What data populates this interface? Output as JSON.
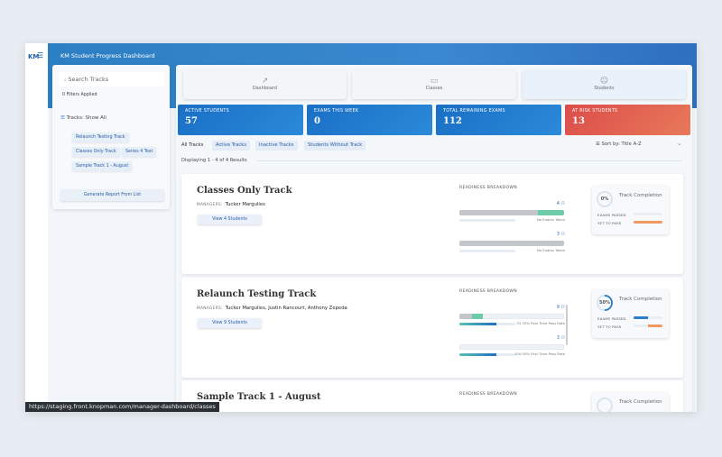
{
  "app": {
    "logo": "KM",
    "title": "KM Student Progress Dashboard"
  },
  "sidebar": {
    "search_placeholder": "Search Tracks",
    "filters_applied": "0 Filters Applied",
    "tracks_filter": "Tracks: Show All",
    "chips": [
      "Relaunch Testing Track",
      "Classes Only Track",
      "Series 4 Test",
      "Sample Track 1 - August"
    ],
    "generate_button": "Generate Report From List"
  },
  "nav_tabs": [
    {
      "label": "Dashboard",
      "icon": "chart-line-icon"
    },
    {
      "label": "Classes",
      "icon": "classroom-icon"
    },
    {
      "label": "Students",
      "icon": "students-icon"
    }
  ],
  "stats": [
    {
      "label": "ACTIVE STUDENTS",
      "value": "57",
      "color": "#1a6fc5"
    },
    {
      "label": "EXAMS THIS WEEK",
      "value": "0",
      "color": "#1a6fc5"
    },
    {
      "label": "TOTAL REMAINING EXAMS",
      "value": "112",
      "color": "#1a6fc5"
    },
    {
      "label": "AT RISK STUDENTS",
      "value": "13",
      "color": "#e0504a"
    }
  ],
  "filter_tabs": [
    "All Tracks",
    "Active Tracks",
    "Inactive Tracks",
    "Students Without Track"
  ],
  "sort_label": "Sort by: Title A-Z",
  "displaying": "Displaying 1 - 4 of 4 Results",
  "readiness_label": "READINESS BREAKDOWN",
  "managers_label": "MANAGERS:",
  "completion": {
    "title": "Track Completion",
    "passed": "EXAMS PASSED",
    "yet": "YET TO PASS"
  },
  "tracks": [
    {
      "title": "Classes Only Track",
      "managers": "Tucker Margulies",
      "button": "View 4 Students",
      "completion_pct": 0,
      "completion_label": "0%",
      "passed_fill": 0,
      "yet_fill": 100,
      "exams": [
        {
          "name": "SIE",
          "count": "4",
          "gray": 75,
          "green": 25,
          "pass_rate": 0,
          "note": "No Exams Taken"
        },
        {
          "name": "Series 3",
          "count": "3",
          "gray": 100,
          "green": 0,
          "pass_rate": 0,
          "note": "No Exams Taken"
        }
      ]
    },
    {
      "title": "Relaunch Testing Track",
      "managers": "Tucker Margulies, Justin Rancourt, Anthony Zepeda",
      "button": "View 9 Students",
      "completion_pct": 50,
      "completion_label": "50%",
      "passed_fill": 50,
      "yet_fill": 50,
      "exams": [
        {
          "name": "SIE",
          "count": "9",
          "gray": 12,
          "green": 10,
          "pass_rate": 66,
          "note": "33.33% First Time Pass Rate"
        },
        {
          "name": "Series 63",
          "count": "3",
          "gray": 0,
          "green": 0,
          "pass_rate": 66,
          "note": "100.00% First Time Pass Rate"
        }
      ]
    },
    {
      "title": "Sample Track 1 - August",
      "managers": "",
      "button": "",
      "exams": []
    }
  ],
  "status_url": "https://staging.front.knopman.com/manager-dashboard/classes"
}
